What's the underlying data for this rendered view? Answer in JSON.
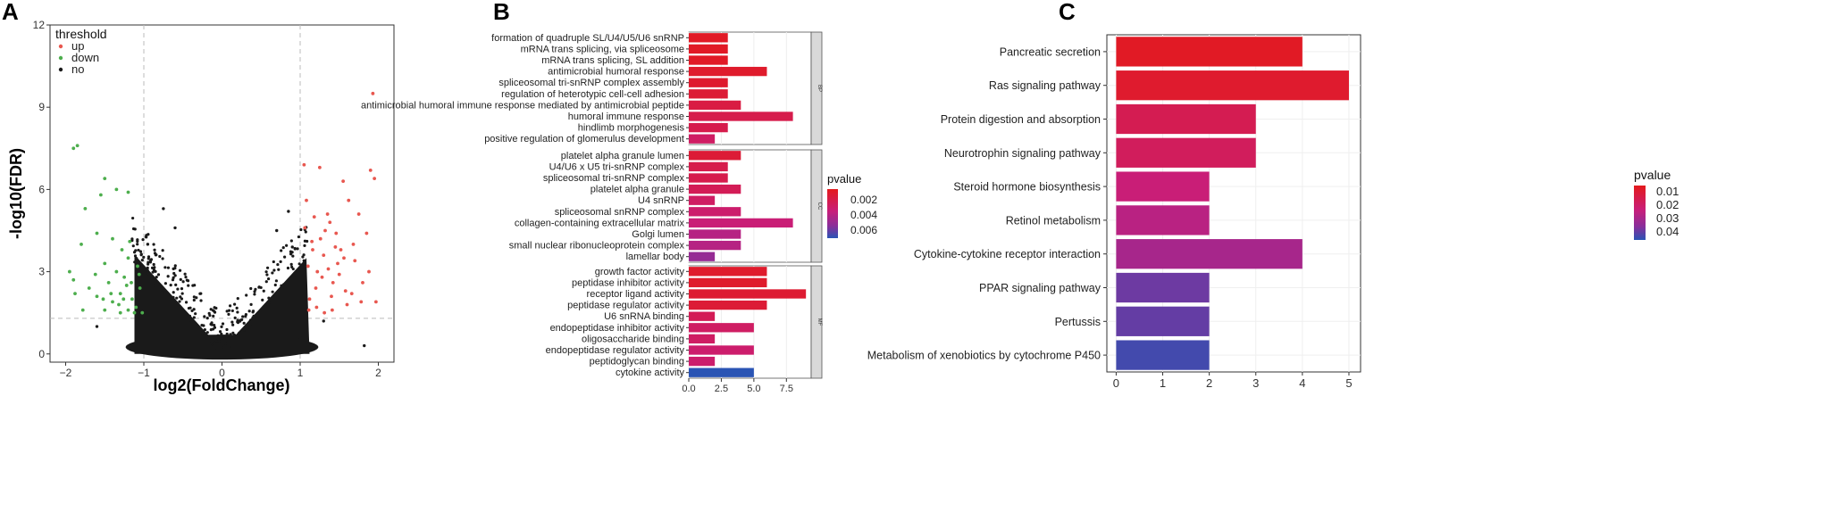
{
  "panels": {
    "a": "A",
    "b": "B",
    "c": "C"
  },
  "colors": {
    "up": "#e8574f",
    "down": "#4dae4d",
    "no": "#1a1a1a",
    "grad_low_p": "#e41a1c",
    "grad_mid": "#c81e7a",
    "grad_mid2": "#8a2e9a",
    "grad_high_p": "#2a54b4"
  },
  "chart_data": [
    {
      "type": "scatter",
      "title": "",
      "xlabel": "log2(FoldChange)",
      "ylabel": "-log10(FDR)",
      "xlim": [
        -2.2,
        2.2
      ],
      "ylim": [
        -0.3,
        12
      ],
      "xticks": [
        -2,
        -1,
        0,
        1,
        2
      ],
      "yticks": [
        0,
        3,
        6,
        9,
        12
      ],
      "threshold_lines": {
        "x": [
          -1,
          1
        ],
        "y": 1.3
      },
      "legend": {
        "title": "threshold",
        "entries": [
          "up",
          "down",
          "no"
        ],
        "position": "top-left"
      },
      "series": [
        {
          "name": "up",
          "points": [
            [
              1.05,
              6.9
            ],
            [
              1.1,
              3.2
            ],
            [
              1.15,
              4.1
            ],
            [
              1.2,
              2.4
            ],
            [
              1.25,
              6.8
            ],
            [
              1.3,
              3.6
            ],
            [
              1.35,
              5.1
            ],
            [
              1.4,
              2.1
            ],
            [
              1.45,
              3.9
            ],
            [
              1.5,
              2.9
            ],
            [
              1.55,
              6.3
            ],
            [
              1.6,
              1.8
            ],
            [
              1.7,
              3.4
            ],
            [
              1.75,
              5.1
            ],
            [
              1.8,
              2.6
            ],
            [
              1.85,
              4.4
            ],
            [
              1.9,
              6.7
            ],
            [
              1.93,
              9.5
            ],
            [
              1.95,
              6.4
            ],
            [
              1.97,
              1.9
            ],
            [
              1.12,
              2.0
            ],
            [
              1.22,
              3.0
            ],
            [
              1.32,
              4.5
            ],
            [
              1.42,
              2.6
            ],
            [
              1.48,
              3.3
            ],
            [
              1.58,
              2.3
            ],
            [
              1.68,
              4.0
            ],
            [
              1.78,
              1.9
            ],
            [
              1.62,
              5.6
            ],
            [
              1.38,
              4.8
            ],
            [
              1.08,
              5.6
            ],
            [
              1.18,
              5.0
            ],
            [
              1.28,
              2.8
            ],
            [
              1.52,
              3.8
            ],
            [
              1.66,
              2.2
            ],
            [
              1.88,
              3.0
            ],
            [
              1.11,
              1.6
            ],
            [
              1.21,
              1.7
            ],
            [
              1.31,
              1.5
            ],
            [
              1.41,
              1.6
            ],
            [
              1.06,
              4.6
            ],
            [
              1.16,
              3.8
            ],
            [
              1.26,
              4.2
            ],
            [
              1.36,
              3.1
            ],
            [
              1.46,
              4.4
            ],
            [
              1.56,
              3.5
            ]
          ]
        },
        {
          "name": "down",
          "points": [
            [
              -1.9,
              7.5
            ],
            [
              -1.85,
              7.6
            ],
            [
              -1.55,
              5.8
            ],
            [
              -1.5,
              6.4
            ],
            [
              -1.35,
              6.0
            ],
            [
              -1.2,
              5.9
            ],
            [
              -1.75,
              5.3
            ],
            [
              -1.6,
              4.4
            ],
            [
              -1.4,
              4.2
            ],
            [
              -1.95,
              3.0
            ],
            [
              -1.9,
              2.7
            ],
            [
              -1.8,
              4.0
            ],
            [
              -1.7,
              2.4
            ],
            [
              -1.6,
              2.1
            ],
            [
              -1.5,
              3.3
            ],
            [
              -1.45,
              2.6
            ],
            [
              -1.4,
              1.9
            ],
            [
              -1.35,
              3.0
            ],
            [
              -1.3,
              2.2
            ],
            [
              -1.25,
              2.8
            ],
            [
              -1.2,
              3.5
            ],
            [
              -1.15,
              2.0
            ],
            [
              -1.1,
              1.7
            ],
            [
              -1.05,
              2.4
            ],
            [
              -1.5,
              1.6
            ],
            [
              -1.3,
              1.5
            ],
            [
              -1.2,
              1.6
            ],
            [
              -1.12,
              1.5
            ],
            [
              -1.22,
              2.5
            ],
            [
              -1.32,
              1.8
            ],
            [
              -1.42,
              2.2
            ],
            [
              -1.28,
              3.8
            ],
            [
              -1.18,
              4.1
            ],
            [
              -1.08,
              3.2
            ],
            [
              -1.78,
              1.6
            ],
            [
              -1.88,
              2.2
            ],
            [
              -1.62,
              2.9
            ],
            [
              -1.52,
              2.0
            ],
            [
              -1.02,
              1.5
            ],
            [
              -1.06,
              2.9
            ],
            [
              -1.16,
              2.6
            ],
            [
              -1.26,
              2.0
            ]
          ]
        }
      ]
    },
    {
      "type": "bar",
      "orientation": "horizontal",
      "title": "",
      "xlabel": "",
      "ylabel": "",
      "xlim": [
        0,
        9.4
      ],
      "xticks": [
        "0.0",
        "2.5",
        "5.0",
        "7.5"
      ],
      "legend": {
        "title": "pvalue",
        "ticks": [
          "0.002",
          "0.004",
          "0.006"
        ],
        "position": "right"
      },
      "facets": [
        {
          "name": "BP",
          "categories": [
            "formation of quadruple SL/U4/U5/U6 snRNP",
            "mRNA trans splicing, via spliceosome",
            "mRNA trans splicing, SL addition",
            "antimicrobial humoral response",
            "spliceosomal tri-snRNP complex assembly",
            "regulation of heterotypic cell-cell adhesion",
            "antimicrobial humoral immune response mediated by antimicrobial peptide",
            "humoral immune response",
            "hindlimb morphogenesis",
            "positive regulation of glomerulus development"
          ],
          "values": [
            3,
            3,
            3,
            6,
            3,
            3,
            4,
            8,
            3,
            2
          ],
          "pvalues": [
            0.0003,
            0.0003,
            0.0003,
            0.0005,
            0.0006,
            0.0008,
            0.0012,
            0.0015,
            0.0015,
            0.0022
          ]
        },
        {
          "name": "CC",
          "categories": [
            "platelet alpha granule lumen",
            "U4/U6 x U5 tri-snRNP complex",
            "spliceosomal tri-snRNP complex",
            "platelet alpha granule",
            "U4 snRNP",
            "spliceosomal snRNP complex",
            "collagen-containing extracellular matrix",
            "Golgi lumen",
            "small nuclear ribonucleoprotein complex",
            "lamellar body"
          ],
          "values": [
            4,
            3,
            3,
            4,
            2,
            4,
            8,
            4,
            4,
            2
          ],
          "pvalues": [
            0.0008,
            0.0015,
            0.0015,
            0.0018,
            0.0022,
            0.0025,
            0.0028,
            0.0035,
            0.0035,
            0.0045
          ]
        },
        {
          "name": "MF",
          "categories": [
            "growth factor activity",
            "peptidase inhibitor activity",
            "receptor ligand activity",
            "peptidase regulator activity",
            "U6 snRNA binding",
            "endopeptidase inhibitor activity",
            "oligosaccharide binding",
            "endopeptidase regulator activity",
            "peptidoglycan binding",
            "cytokine activity"
          ],
          "values": [
            6,
            6,
            9,
            6,
            2,
            5,
            2,
            5,
            2,
            5
          ],
          "pvalues": [
            0.0005,
            0.0005,
            0.0007,
            0.0008,
            0.0018,
            0.0022,
            0.0022,
            0.0025,
            0.0025,
            0.0065
          ]
        }
      ]
    },
    {
      "type": "bar",
      "orientation": "horizontal",
      "title": "",
      "xlabel": "",
      "ylabel": "",
      "xlim": [
        -0.2,
        5.25
      ],
      "xticks": [
        "0",
        "1",
        "2",
        "3",
        "4",
        "5"
      ],
      "legend": {
        "title": "pvalue",
        "ticks": [
          "0.01",
          "0.02",
          "0.03",
          "0.04"
        ],
        "position": "right"
      },
      "categories": [
        "Pancreatic secretion",
        "Ras signaling pathway",
        "Protein digestion and absorption",
        "Neurotrophin signaling pathway",
        "Steroid hormone biosynthesis",
        "Retinol metabolism",
        "Cytokine-cytokine receptor interaction",
        "PPAR signaling pathway",
        "Pertussis",
        "Metabolism of xenobiotics by cytochrome P450"
      ],
      "values": [
        4,
        5,
        3,
        3,
        2,
        2,
        4,
        2,
        2,
        2
      ],
      "pvalues": [
        0.004,
        0.006,
        0.014,
        0.016,
        0.022,
        0.026,
        0.03,
        0.04,
        0.041,
        0.045
      ]
    }
  ]
}
